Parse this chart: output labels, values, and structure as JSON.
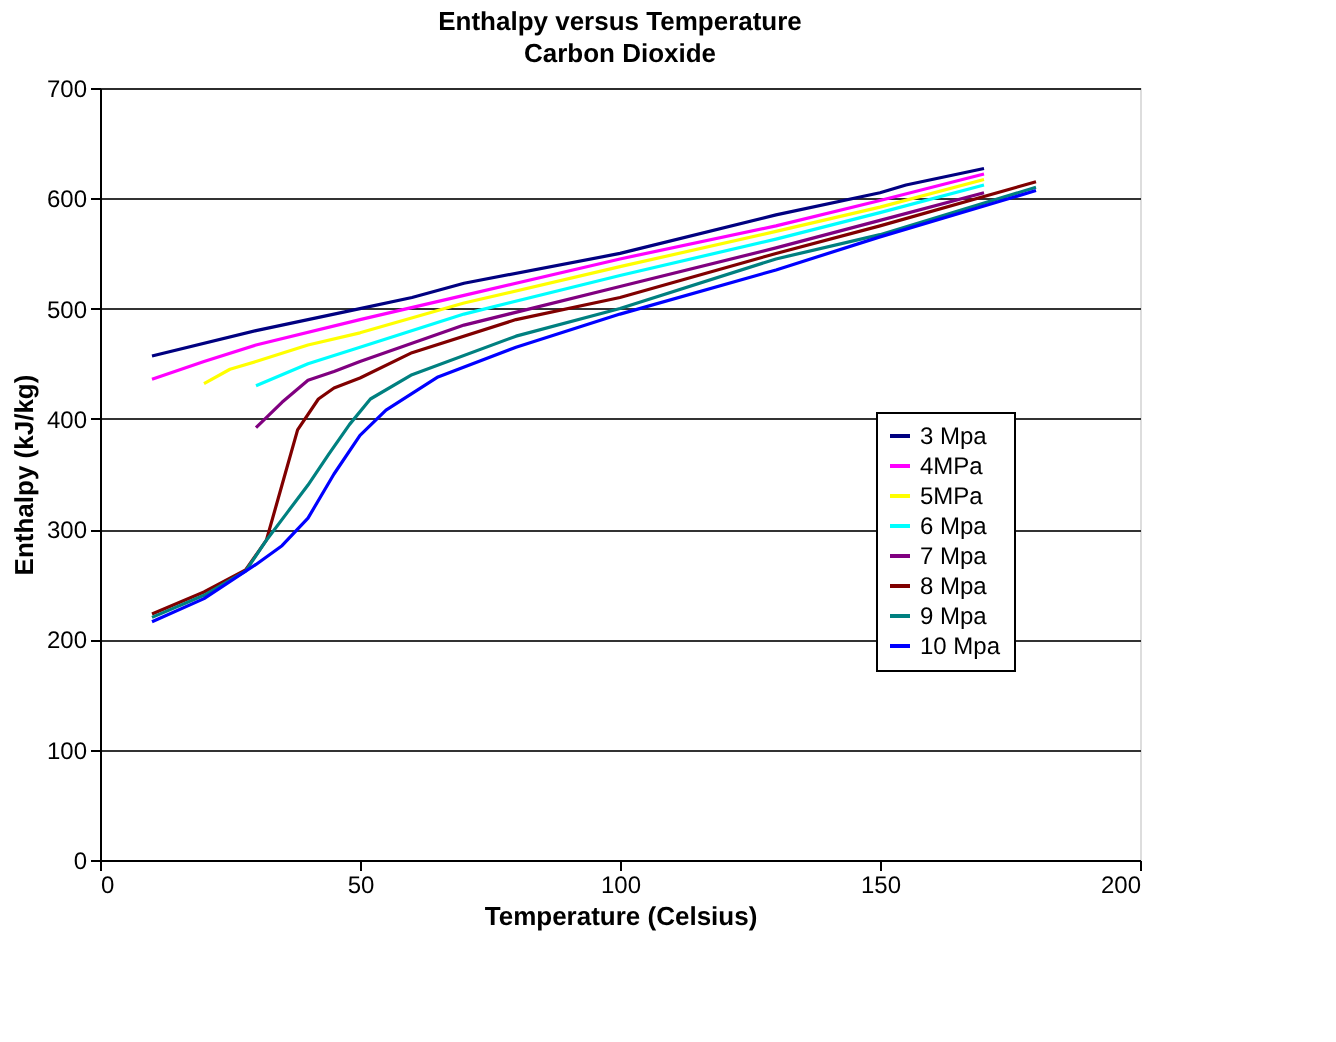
{
  "chart_data": {
    "type": "line",
    "title": "Enthalpy versus Temperature",
    "subtitle": "Carbon Dioxide",
    "xlabel": "Temperature (Celsius)",
    "ylabel": "Enthalpy (kJ/kg)",
    "xlim": [
      0,
      200
    ],
    "xticks": [
      0,
      50,
      100,
      150,
      200
    ],
    "ylim": [
      0,
      700
    ],
    "yticks": [
      0,
      100,
      200,
      300,
      400,
      500,
      600,
      700
    ],
    "grid": "y",
    "legend": "right",
    "marker": "none",
    "line_style": "solid",
    "series": [
      {
        "name": "3 Mpa",
        "color": "#000080",
        "x": [
          10,
          30,
          50,
          60,
          70,
          100,
          130,
          150,
          155,
          170
        ],
        "values": [
          457,
          480,
          500,
          510,
          523,
          550,
          585,
          605,
          612,
          627
        ]
      },
      {
        "name": "4MPa",
        "color": "#ff00ff",
        "x": [
          10,
          20,
          30,
          50,
          70,
          100,
          130,
          150,
          170
        ],
        "values": [
          436,
          452,
          467,
          490,
          512,
          545,
          575,
          598,
          622
        ]
      },
      {
        "name": "5MPa",
        "color": "#ffff00",
        "x": [
          20,
          25,
          30,
          40,
          50,
          70,
          100,
          130,
          150,
          170
        ],
        "values": [
          432,
          445,
          452,
          467,
          478,
          505,
          538,
          570,
          592,
          617
        ]
      },
      {
        "name": "6 Mpa",
        "color": "#00ffff",
        "x": [
          30,
          40,
          50,
          70,
          100,
          130,
          150,
          170
        ],
        "values": [
          430,
          450,
          465,
          495,
          530,
          563,
          587,
          612
        ]
      },
      {
        "name": "7 Mpa",
        "color": "#800080",
        "x": [
          30,
          35,
          40,
          45,
          50,
          70,
          100,
          130,
          150,
          170
        ],
        "values": [
          392,
          415,
          435,
          443,
          452,
          485,
          520,
          555,
          580,
          605
        ]
      },
      {
        "name": "8 Mpa",
        "color": "#800000",
        "x": [
          10,
          20,
          28,
          32,
          35,
          38,
          42,
          45,
          50,
          60,
          80,
          100,
          130,
          150,
          180
        ],
        "values": [
          223,
          243,
          263,
          290,
          340,
          390,
          418,
          428,
          437,
          460,
          490,
          510,
          550,
          575,
          615
        ]
      },
      {
        "name": "9 Mpa",
        "color": "#008080",
        "x": [
          10,
          20,
          28,
          32,
          36,
          40,
          44,
          48,
          52,
          60,
          80,
          100,
          130,
          150,
          180
        ],
        "values": [
          220,
          240,
          262,
          290,
          315,
          340,
          368,
          395,
          418,
          440,
          475,
          500,
          545,
          567,
          610
        ]
      },
      {
        "name": "10 Mpa",
        "color": "#0000ff",
        "x": [
          10,
          20,
          30,
          35,
          40,
          45,
          50,
          55,
          65,
          80,
          100,
          130,
          150,
          180
        ],
        "values": [
          216,
          237,
          268,
          285,
          310,
          350,
          385,
          408,
          438,
          465,
          495,
          535,
          565,
          607
        ]
      }
    ]
  }
}
